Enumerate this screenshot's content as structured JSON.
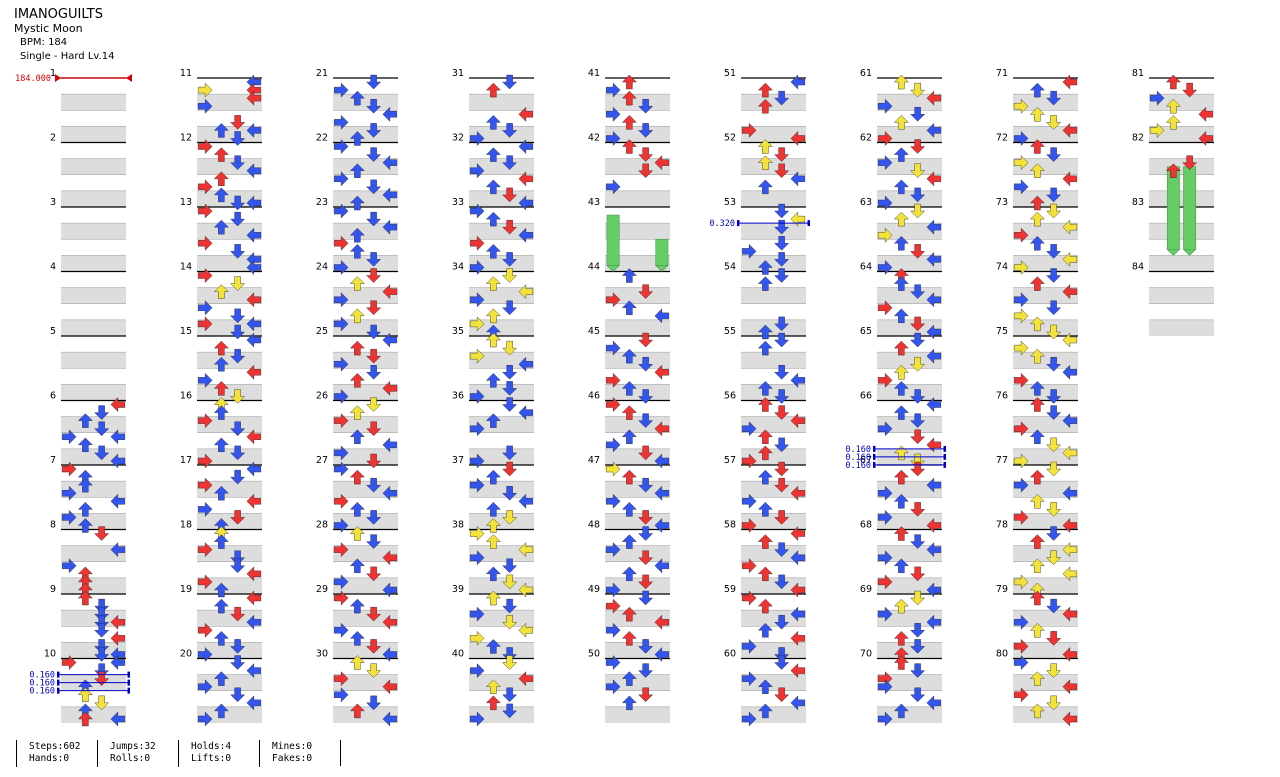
{
  "song": {
    "title": "IMANOGUILTS",
    "artist": "Mystic Moon",
    "bpm_label": "BPM: 184",
    "difficulty": "Single - Hard  Lv.14"
  },
  "chart_data": {
    "type": "table",
    "mode": "Single",
    "lanes": 4,
    "measure_count": 84,
    "measures_per_column": 10,
    "beats_per_measure": 4,
    "colors": {
      "quarter": "#ee3333",
      "eighth": "#3355ee",
      "sixteenth": "#f2e23a",
      "hold": "#66cc66",
      "bpm": "#dd0000",
      "stop": "#0000cc",
      "band": "#dddddd"
    },
    "bpm_changes": [
      {
        "measure": 1,
        "label": "184.000"
      }
    ],
    "stops": [
      {
        "measure": 10.25,
        "labels": [
          "0.160",
          "0.160",
          "0.160"
        ]
      },
      {
        "measure": 53.25,
        "labels": [
          "0.320"
        ]
      },
      {
        "measure": 66.75,
        "labels": [
          "0.160",
          "0.160",
          "0.160"
        ]
      }
    ],
    "holds": [
      {
        "lane": 0,
        "start": 43.125,
        "end": 44.0
      },
      {
        "lane": 3,
        "start": 43.5,
        "end": 44.0
      },
      {
        "lane": 1,
        "start": 82.375,
        "end": 83.75
      },
      {
        "lane": 2,
        "start": 82.375,
        "end": 83.75
      }
    ],
    "notes": {
      "6": "...R|..B.|.B..|..B.|B..B|.B..|..B.|...B",
      "7": "R...|.B..|.B..|B...|...B|.B..|B...|.B..",
      "8": "..R.|....|...B|....|B...|.R..|.R..|.R..",
      "9": ".R..|..B.|..B.|..BR|..B.|...R|..B.|..BB",
      "10": "R..B|..B.|..R.|.B..|.Y..|..Y.|.B..|.R.B",
      "11": "...B|Y..R|...R|B...|....|..R.|.B.B|..B.",
      "12": "R...|.R..|..B.|...B|.R..|R...|.B..|..BB",
      "13": "R...|..B.|.B..|...B|R...|..B.|...B|...B",
      "14": "R...|..Y.|.Y..|...R|B...|..B.|R..B|..B.",
      "15": "...B|.R..|..B.|.B..|...R|B...|.R..|..Y.",
      "16": ".Y..|.B..|R...|..B.|...R|.B..|..B.|R...",
      "17": "...B|..B.|R...|.B..|...R|B...|..R.|.B..",
      "18": ".Y..|.B..|R...|..B.|..B.|...R|R...|.B..",
      "19": "...R|.B..|..R.|...B|R...|.B..|..B.|B...",
      "20": "..B.|...B|.B..|B...|..B.|...B|.B..|B...",
      "21": "..B.|B...|.B..|..B.|...B|B...|..B.|.B..",
      "22": "B...|..B.|...B|.B..|B...|..B.|...B|.B..",
      "23": "B...|..B.|...B|.B..|R...|.B..|..B.|B...",
      "24": "..R.|.Y..|...R|B...|..R.|.Y..|B...|..B.",
      "25": "...B|.R..|..R.|B...|..B.|.R..|...R|B...",
      "26": "..Y.|.Y..|R...|..R.|.B..|...B|B...|..R.",
      "27": "B...|.R..|..B.|...B|R...|.B..|..B.|B...",
      "28": ".Y..|..B.|R...|...R|.B..|..R.|B...|...B",
      "29": "R...|.B..|..R.|...R|B...|.B..|..R.|...B",
      "30": ".Y..|..Y.|R...|...R|B...|..B.|.R..|...B",
      "31": "..B.|.R..|....|....|...R|.B..|..B.|B...",
      "32": "...B|.B..|..B.|B...|...R|.B..|..R.|...B",
      "33": "B...|.B..|..R.|...B|R...|.B..|..B.|B...",
      "34": "..Y.|.Y..|...Y|B...|..B.|.Y..|Y...|.B..",
      "35": ".Y..|..Y.|Y...|...B|..B.|.B..|..B.|B...",
      "36": "..B.|...B|.B..|B...|....|....|..B.|B...",
      "37": "..R.|.B..|B...|..B.|...B|.B..|..Y.|.Y..",
      "38": "Y...|.Y..|...Y|B...|..B.|.B..|..Y.|...Y",
      "39": ".Y..|..B.|B...|..Y.|...Y|Y...|.B..|..B.",
      "40": "..Y.|B...|...R|.Y..|..B.|.R..|..B.|B...",
      "41": ".R..|B...|.R..|..B.|B...|.R..|..B.|B...",
      "42": ".R..|..R.|...R|..R.|....|B...|....|....",
      "43": "....|....|....|....|....|....|....|....",
      "44": ".B..|....|..R.|R...|.B..|...B|....|....",
      "45": "..R.|B...|.B..|..B.|...R|R...|.B..|..B.",
      "46": "R...|.R..|..B.|...R|.B..|B...|..R.|...B",
      "47": "Y...|.R..|..B.|...B|B...|.B..|..R.|...B",
      "48": "..B.|.B..|B...|..R.|...B|.B..|..R.|B...",
      "49": "..B.|R...|.R..|...R|B...|.R..|..B.|...B",
      "50": "B...|..B.|.B..|B...|..R.|.B..|....|....",
      "51": "...B|.R..|..B.|.R..|....|....|R...|...R",
      "52": ".Y..|..R.|.Y..|..R.|...B|.B..|....|....",
      "53": "..B.|...Y|..B.|....|..B.|B...|..B.|.B..",
      "54": "..B.|.B..|....|....|....|....|..B.|.B..",
      "55": "..B.|.B..|....|....|..B.|...B|.B..|..B.",
      "56": ".R..|..R.|...R|B...|.R..|..B.|.R..|R...",
      "57": "..R.|.B..|..R.|...R|B...|.B..|..R.|R...",
      "58": "...R|.R..|..B.|...B|R...|.R..|..B.|...R",
      "59": "R...|.R..|...B|..B.|.B..|...R|B...|..B.",
      "60": "..B.|...R|B...|.B..|..R.|...B|.B..|B...",
      "61": ".Y..|..Y.|...R|B...|..B.|.Y..|...B|R...",
      "62": "..R.|.B..|B...|..Y.|...R|.B..|..B.|B...",
      "63": "..Y.|.Y..|...B|Y...|.B..|..R.|...B|B...",
      "64": ".R..|.B..|..B.|...B|R...|.B..|..R.|...B",
      "65": "..B.|.R..|...B|..Y.|.Y..|R...|.B..|..B.",
      "66": "...B|.B..|..B.|B...|..R.|...R|.Y..|..Y.",
      "67": "..R.|.R..|...B|B...|.B..|..R.|B...|...R",
      "68": ".R..|..B.|...B|B...|.B..|..R.|R...|...B",
      "69": "..Y.|.Y..|B...|...B|..B.|.R..|..B.|.R..",
      "70": ".R..|..B.|R...|B...|..B.|...B|.B..|B...",
      "71": "...R|.B..|..B.|Y...|.Y..|..Y.|...R|B...",
      "72": ".R..|..B.|Y...|.Y..|...R|B...|..B.|.R..",
      "73": "..Y.|.Y..|...Y|R...|.B..|..B.|...Y|Y...",
      "74": "..B.|.R..|...R|B...|..B.|Y...|.Y..|..Y.",
      "75": "...Y|Y...|.Y..|..B.|...B|R...|.B..|..B.",
      "76": ".R..|..B.|...B|R...|.B..|..Y.|...Y|Y...",
      "77": "..Y.|.R..|B...|...B|.Y..|..Y.|R...|...R",
      "78": "..B.|.R..|...Y|..Y.|.Y..|...Y|Y...|.Y..",
      "79": ".R..|..B.|...R|B...|.Y..|..R.|R...|...R",
      "80": "B...|..Y.|.Y..|...R|R...|..Y.|.Y..|...R",
      "81": ".R..|..R.|B...|.Y..|...R|.Y..|Y...|...R",
      "82": "....|....|..R.|.R..|....|....|....|....",
      "83": "....|....|....|....|....|....|....|....",
      "84": "....|....|....|....|....|....|....|...."
    }
  },
  "stats": [
    {
      "line1": "Steps:602",
      "line2": "Hands:0"
    },
    {
      "line1": "Jumps:32",
      "line2": "Rolls:0"
    },
    {
      "line1": "Holds:4",
      "line2": "Lifts:0"
    },
    {
      "line1": "Mines:0",
      "line2": "Fakes:0"
    }
  ]
}
